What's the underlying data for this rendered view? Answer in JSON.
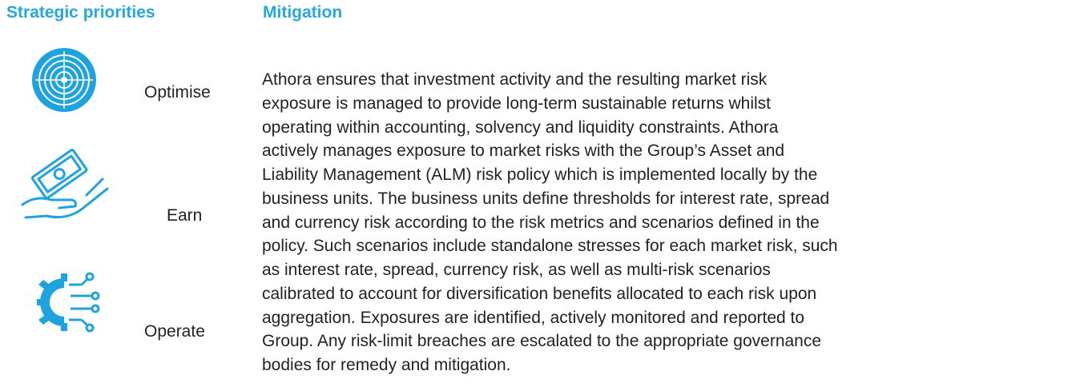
{
  "headers": {
    "priorities": "Strategic priorities",
    "mitigation": "Mitigation"
  },
  "priorities": [
    "Optimise",
    "Earn",
    "Operate"
  ],
  "mitigation": {
    "lines": [
      "Athora ensures that investment activity and the resulting market risk",
      "exposure is managed to provide long-term sustainable returns whilst",
      "operating within accounting, solvency and liquidity constraints. Athora",
      "actively manages exposure to market risks with the Group’s Asset and",
      "Liability Management (ALM) risk policy which is implemented locally by the",
      "business units. The business units define thresholds for interest rate, spread",
      "and currency risk according to the risk metrics and scenarios defined in the",
      "policy. Such scenarios include standalone stresses for each market risk, such",
      "as interest rate, spread, currency risk, as well as multi-risk scenarios",
      "calibrated to account for diversification benefits allocated to each risk upon",
      "aggregation. Exposures are identified, actively monitored and reported to",
      "Group. Any risk-limit breaches are escalated to the appropriate governance",
      "bodies for remedy and mitigation."
    ]
  }
}
